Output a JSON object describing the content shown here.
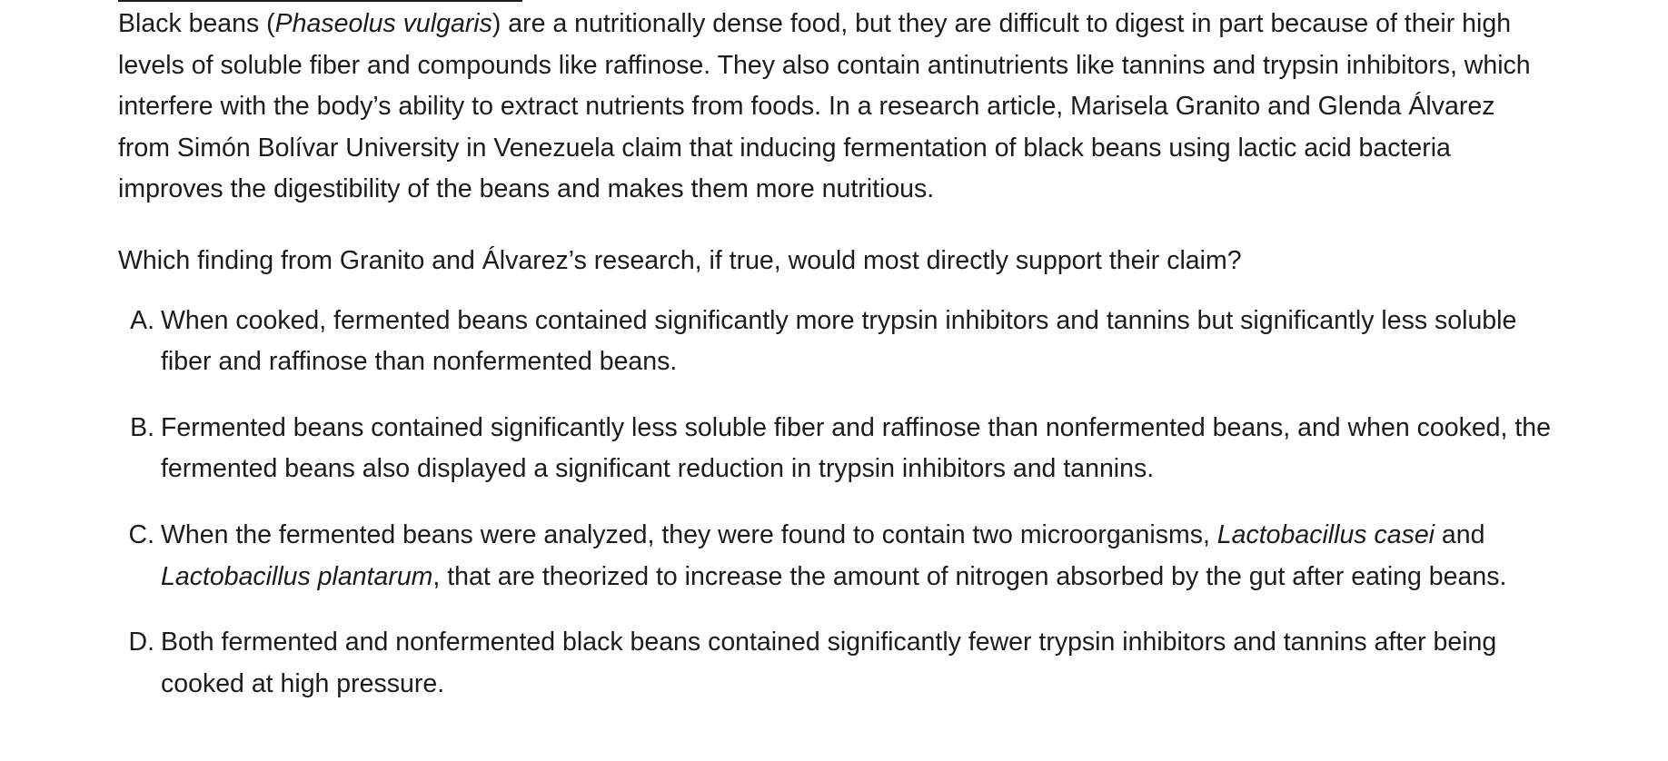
{
  "passage": {
    "text_1": "Black beans (",
    "italic_1": "Phaseolus vulgaris",
    "text_2": ") are a nutritionally dense food, but they are difficult to digest in part because of their high levels of soluble fiber and compounds like raffinose. They also contain antinutrients like tannins and trypsin inhibitors, which interfere with the body’s ability to extract nutrients from foods. In a research article, Marisela Granito and Glenda Álvarez from Simón Bolívar University in Venezuela claim that inducing fermentation of black beans using lactic acid bacteria improves the digestibility of the beans and makes them more nutritious."
  },
  "question": "Which finding from Granito and Álvarez’s research, if true, would most directly support their claim?",
  "choices": [
    {
      "letter": "A.",
      "text": "When cooked, fermented beans contained significantly more trypsin inhibitors and tannins but significantly less soluble fiber and raffinose than nonfermented beans."
    },
    {
      "letter": "B.",
      "text": "Fermented beans contained significantly less soluble fiber and raffinose than nonfermented beans, and when cooked, the fermented beans also displayed a significant reduction in trypsin inhibitors and tannins."
    },
    {
      "letter": "C.",
      "text_1": "When the fermented beans were analyzed, they were found to contain two microorganisms, ",
      "italic_1": "Lactobacillus casei",
      "text_2": " and ",
      "italic_2": "Lactobacillus plantarum",
      "text_3": ", that are theorized to increase the amount of nitrogen absorbed by the gut after eating beans."
    },
    {
      "letter": "D.",
      "text": "Both fermented and nonfermented black beans contained significantly fewer trypsin inhibitors and tannins after being cooked at high pressure."
    }
  ]
}
